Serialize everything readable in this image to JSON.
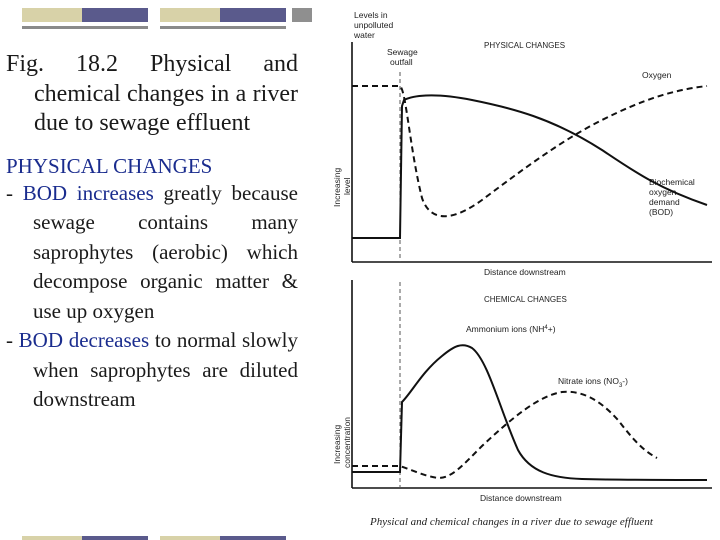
{
  "colors": {
    "text": "#1a1a1a",
    "accent_blue": "#1a2c8e",
    "band_tan": "#d8d2a8",
    "band_navy": "#5a5a8c",
    "band_gray": "#8f8f8f",
    "curve": "#111111"
  },
  "slide": {
    "caption": "Fig. 18.2 Physical and chemical changes in a river due to sewage effluent",
    "heading": "PHYSICAL CHANGES",
    "bullets": [
      {
        "dash": "- ",
        "lead": "BOD increases",
        "rest": " greatly because sewage contains many saprophytes (aerobic) which decompose organic matter & use up oxygen"
      },
      {
        "dash": "- ",
        "lead": "BOD decreases",
        "rest": " to normal slowly when saprophytes are diluted downstream"
      }
    ]
  },
  "figure": {
    "labels": {
      "levels": [
        "Levels in",
        "unpolluted",
        "water"
      ],
      "outfall": [
        "Sewage",
        "outfall"
      ],
      "physical_title": "PHYSICAL CHANGES",
      "oxygen": "Oxygen",
      "bod": [
        "Biochemical",
        "oxygen",
        "demand",
        "(BOD)"
      ],
      "y_top": [
        "Increasing",
        "level"
      ],
      "x_top": "Distance downstream",
      "chemical_title": "CHEMICAL CHANGES",
      "ammonium": "Ammonium ions (NH",
      "ammonium_sup": "4",
      "ammonium_end": "+)",
      "nitrate": "Nitrate ions (NO",
      "nitrate_sub": "3",
      "nitrate_end": "-)",
      "y_bottom": [
        "Increasing",
        "concentration"
      ],
      "x_bottom": "Distance downstream",
      "caption": "Physical and chemical changes in a river due to sewage effluent"
    }
  }
}
